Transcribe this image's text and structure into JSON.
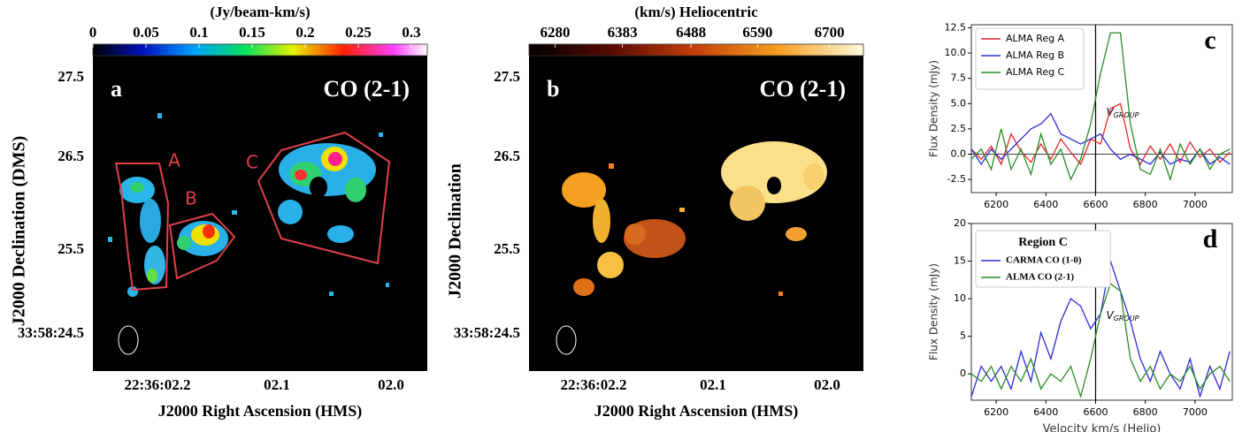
{
  "chart_data": [
    {
      "type": "map",
      "panel_label": "a",
      "annotation": "CO (2-1)",
      "colorbar_title": "(Jy/beam-km/s)",
      "cbar_lim": [
        0,
        0.315
      ],
      "cbar_ticks": [
        0,
        0.05,
        0.1,
        0.15,
        0.2,
        0.25,
        0.3
      ],
      "xtick_labels": [
        "22:36:02.2",
        "02.1",
        "02.0"
      ],
      "ytick_labels": [
        "27.5",
        "26.5",
        "25.5",
        "33:58:24.5"
      ],
      "xlabel": "J2000 Right Ascension (HMS)",
      "ylabel": "J2000 Declination  (DMS)",
      "region_labels": [
        "A",
        "B",
        "C"
      ]
    },
    {
      "type": "map",
      "panel_label": "b",
      "annotation": "CO (2-1)",
      "colorbar_title": "(km/s) Heliocentric",
      "cbar_lim": [
        6240,
        6752
      ],
      "cbar_ticks": [
        6280,
        6383,
        6488,
        6590,
        6700
      ],
      "xtick_labels": [
        "22:36:02.2",
        "02.1",
        "02.0"
      ],
      "ytick_labels": [
        "27.5",
        "26.5",
        "25.5",
        "33:58:24.5"
      ],
      "xlabel": "J2000 Right Ascension (HMS)",
      "ylabel": "J2000 Declination"
    },
    {
      "type": "line",
      "panel_label": "c",
      "ylabel": "Flux Density (mJy)",
      "vline": 6600,
      "hline": 0,
      "vline_label": "V",
      "vline_label_sub": "GROUP",
      "xlim": [
        6100,
        7150
      ],
      "xticks": [
        6200,
        6400,
        6600,
        6800,
        7000
      ],
      "ylim": [
        -3.8,
        12.8
      ],
      "yticks": [
        -2.5,
        {
          "value": 0,
          "label": "0.0"
        },
        {
          "value": 2.5,
          "label": "2.5"
        },
        {
          "value": 5,
          "label": "5.0"
        },
        {
          "value": 7.5,
          "label": "7.5"
        },
        {
          "value": 10,
          "label": "10.0"
        },
        12.5
      ],
      "x": [
        6100,
        6140,
        6180,
        6220,
        6260,
        6300,
        6340,
        6380,
        6420,
        6460,
        6500,
        6540,
        6580,
        6620,
        6660,
        6700,
        6740,
        6780,
        6820,
        6860,
        6900,
        6940,
        6980,
        7020,
        7060,
        7100,
        7140
      ],
      "series": [
        {
          "name": "ALMA Reg A",
          "color": "#e8262a",
          "values": [
            0.5,
            -0.5,
            0.8,
            -1,
            2,
            0.3,
            -0.8,
            1,
            -0.5,
            1.5,
            0.2,
            -1,
            1.5,
            1,
            4.5,
            5,
            0.5,
            -1,
            0.8,
            -0.5,
            1,
            -0.8,
            1.2,
            -0.3,
            0.5,
            -0.8,
            0.2
          ]
        },
        {
          "name": "ALMA Reg B",
          "color": "#2b2bd8",
          "values": [
            0.5,
            -1,
            0.5,
            -0.5,
            0.5,
            1.5,
            2.5,
            3,
            4,
            2,
            1.5,
            1,
            1.5,
            2,
            0.5,
            -0.5,
            0,
            -0.5,
            -1,
            0.2,
            -1,
            -0.5,
            -0.8,
            0.5,
            -1,
            -0.3,
            -1
          ]
        },
        {
          "name": "ALMA Reg C",
          "color": "#2a8a2a",
          "values": [
            -0.5,
            0.5,
            -1.5,
            2.5,
            -1.5,
            0.5,
            -2,
            2,
            -1,
            0.5,
            -2.5,
            -0.5,
            3,
            8,
            12,
            12,
            3,
            -1.5,
            -2,
            0.5,
            -2.5,
            1,
            -1,
            0.5,
            -1.5,
            0,
            0.5
          ]
        }
      ]
    },
    {
      "type": "line",
      "panel_label": "d",
      "ylabel": "Flux Density (mJy)",
      "xlabel": "Velocity km/s (Helio)",
      "legend_title": "Region C",
      "vline": 6600,
      "vline_label": "V",
      "vline_label_sub": "GROUP",
      "xlim": [
        6100,
        7150
      ],
      "xticks": [
        6200,
        6400,
        6600,
        6800,
        7000
      ],
      "ylim": [
        -3.5,
        20
      ],
      "yticks": [
        0,
        5,
        10,
        15,
        20
      ],
      "x": [
        6100,
        6140,
        6180,
        6220,
        6260,
        6300,
        6340,
        6380,
        6420,
        6460,
        6500,
        6540,
        6580,
        6620,
        6660,
        6700,
        6740,
        6780,
        6820,
        6860,
        6900,
        6940,
        6980,
        7020,
        7060,
        7100,
        7140
      ],
      "series": [
        {
          "name": "CARMA CO (1-0)",
          "color": "#2b2bd8",
          "values": [
            -3,
            1,
            -1,
            1,
            -2,
            3,
            -1,
            5.5,
            2,
            7,
            10,
            9,
            6,
            8,
            15,
            11,
            7,
            2,
            -1,
            3,
            0,
            -2,
            2,
            -3,
            1,
            -2,
            3
          ]
        },
        {
          "name": "ALMA CO (2-1)",
          "color": "#2a8a2a",
          "values": [
            0,
            -1,
            1,
            -2,
            1,
            -1,
            2,
            -2,
            0,
            -1,
            1,
            -3,
            2,
            8,
            12,
            11,
            2,
            -1,
            1,
            -2,
            0,
            -1,
            1,
            -2,
            0,
            1,
            -1
          ]
        }
      ]
    }
  ]
}
